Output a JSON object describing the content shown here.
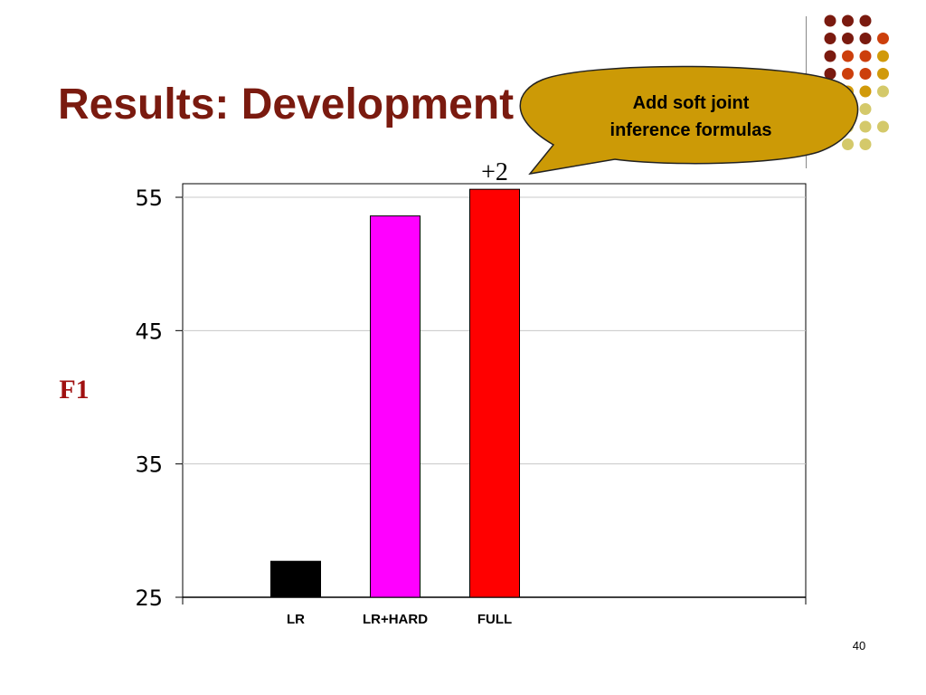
{
  "slide": {
    "title": "Results: Development",
    "page_number": "40",
    "callout_text_line1": "Add soft joint",
    "callout_text_line2": "inference formulas",
    "annotation": "+2"
  },
  "colors": {
    "title": "#7a1a0f",
    "callout_fill": "#cc9a06",
    "dot_palette": [
      "#7a1a0f",
      "#cc3f0c",
      "#d19a0a",
      "#d4c96a"
    ]
  },
  "chart_data": {
    "type": "bar",
    "categories": [
      "LR",
      "LR+HARD",
      "FULL"
    ],
    "values": [
      27.7,
      53.6,
      55.6
    ],
    "bar_colors": [
      "#000000",
      "#ff00ff",
      "#ff0000"
    ],
    "ylabel": "F1",
    "ylim": [
      25,
      55
    ],
    "yticks": [
      25,
      35,
      45,
      55
    ],
    "grid": true,
    "legend": "none"
  }
}
